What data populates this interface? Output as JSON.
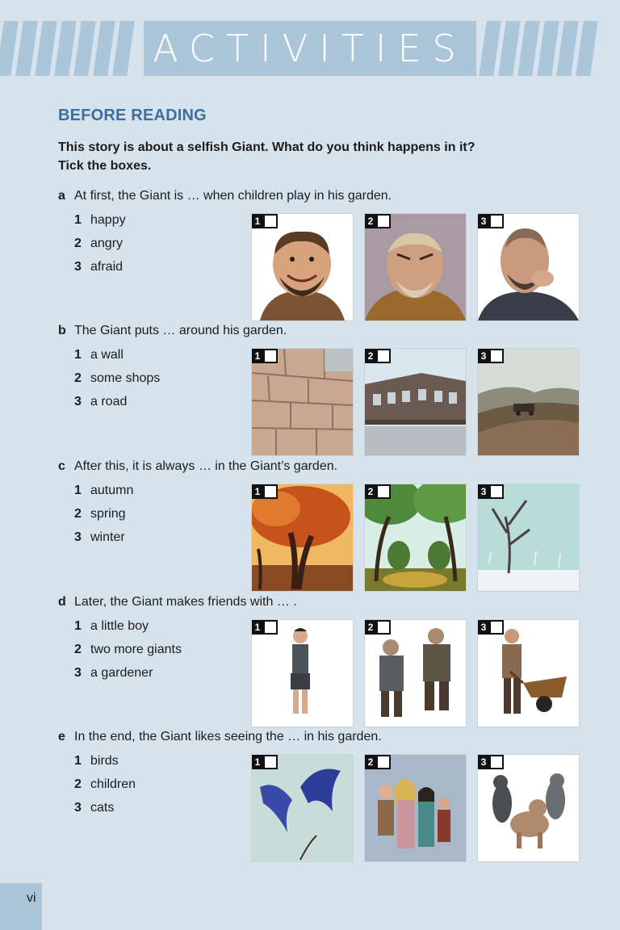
{
  "banner": {
    "title": "ACTIVITIES"
  },
  "section_heading": "BEFORE READING",
  "intro": {
    "line1": "This story is about a selfish Giant. What do you think happens in it?",
    "line2": "Tick the boxes."
  },
  "questions": [
    {
      "letter": "a",
      "stem": "At first, the Giant is … when children play in his garden.",
      "options": [
        {
          "num": "1",
          "text": "happy"
        },
        {
          "num": "2",
          "text": "angry"
        },
        {
          "num": "3",
          "text": "afraid"
        }
      ],
      "pictures": [
        "smiling-giant",
        "angry-giant",
        "worried-giant"
      ]
    },
    {
      "letter": "b",
      "stem": "The Giant puts … around his garden.",
      "options": [
        {
          "num": "1",
          "text": "a wall"
        },
        {
          "num": "2",
          "text": "some shops"
        },
        {
          "num": "3",
          "text": "a road"
        }
      ],
      "pictures": [
        "stone-wall",
        "row-of-shops",
        "country-road"
      ]
    },
    {
      "letter": "c",
      "stem": "After this, it is always … in the Giant’s garden.",
      "options": [
        {
          "num": "1",
          "text": "autumn"
        },
        {
          "num": "2",
          "text": "spring"
        },
        {
          "num": "3",
          "text": "winter"
        }
      ],
      "pictures": [
        "autumn-tree",
        "spring-garden",
        "winter-tree"
      ]
    },
    {
      "letter": "d",
      "stem": "Later, the Giant makes friends with … .",
      "options": [
        {
          "num": "1",
          "text": "a little boy"
        },
        {
          "num": "2",
          "text": "two more giants"
        },
        {
          "num": "3",
          "text": "a gardener"
        }
      ],
      "pictures": [
        "little-boy",
        "two-giants",
        "gardener-wheelbarrow"
      ]
    },
    {
      "letter": "e",
      "stem": "In the end, the Giant likes seeing the … in his garden.",
      "options": [
        {
          "num": "1",
          "text": "birds"
        },
        {
          "num": "2",
          "text": "children"
        },
        {
          "num": "3",
          "text": "cats"
        }
      ],
      "pictures": [
        "blue-birds",
        "group-of-children",
        "three-cats"
      ]
    }
  ],
  "tick_labels": [
    "1",
    "2",
    "3"
  ],
  "page_number": "vi",
  "colors": {
    "background": "#d6e3ed",
    "banner": "#abc6d9",
    "heading": "#3e6e9c"
  }
}
